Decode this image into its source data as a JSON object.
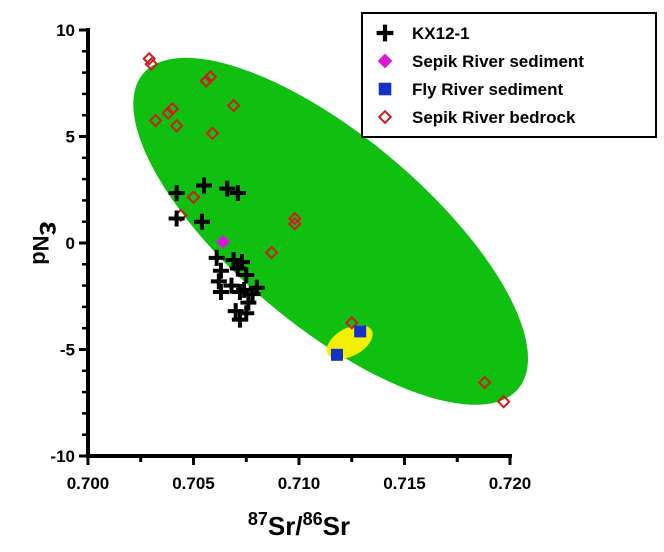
{
  "chart_data": {
    "type": "scatter",
    "title": "",
    "xlabel": {
      "sup1": "87",
      "main1": "Sr/",
      "sup2": "86",
      "main2": "Sr"
    },
    "ylabel": {
      "main": "ε",
      "sub": "Nd"
    },
    "xlim": [
      0.7,
      0.72
    ],
    "ylim": [
      -10,
      10
    ],
    "x_ticks": [
      "0.700",
      "0.705",
      "0.710",
      "0.715",
      "0.720"
    ],
    "y_ticks": [
      "10",
      "5",
      "0",
      "-5",
      "-10"
    ],
    "legend_position": "top-right",
    "grid": false,
    "fields": [
      {
        "label": "green field",
        "color": "#10c010",
        "center": [
          0.7115,
          0.55
        ],
        "extent_x": [
          0.701,
          0.722
        ],
        "orientation": "upper-left to lower-right"
      },
      {
        "label": "yellow field",
        "color": "#f5ef00",
        "center": [
          0.7124,
          -4.65
        ],
        "extent_x": [
          0.7112,
          0.7138
        ]
      }
    ],
    "series": [
      {
        "name": "KX12-1",
        "marker": "cross",
        "color": "#000000",
        "points": [
          [
            0.7042,
            2.35
          ],
          [
            0.7055,
            2.7
          ],
          [
            0.7066,
            2.55
          ],
          [
            0.7071,
            2.35
          ],
          [
            0.7054,
            1.0
          ],
          [
            0.7042,
            1.15
          ],
          [
            0.7061,
            -0.7
          ],
          [
            0.7063,
            -1.3
          ],
          [
            0.7062,
            -1.8
          ],
          [
            0.7063,
            -2.3
          ],
          [
            0.7069,
            -0.8
          ],
          [
            0.7071,
            -1.2
          ],
          [
            0.7073,
            -0.9
          ],
          [
            0.7075,
            -1.5
          ],
          [
            0.7068,
            -2.0
          ],
          [
            0.7072,
            -2.3
          ],
          [
            0.7074,
            -2.2
          ],
          [
            0.7076,
            -2.8
          ],
          [
            0.707,
            -3.2
          ],
          [
            0.7072,
            -3.6
          ],
          [
            0.7075,
            -3.3
          ],
          [
            0.7078,
            -2.4
          ],
          [
            0.708,
            -2.1
          ]
        ]
      },
      {
        "name": "Sepik River sediment",
        "marker": "diamond",
        "color": "#d81ad8",
        "points": [
          [
            0.7064,
            0.05
          ]
        ]
      },
      {
        "name": "Fly River sediment",
        "marker": "square",
        "color": "#1432c8",
        "points": [
          [
            0.7118,
            -5.25
          ],
          [
            0.7129,
            -4.15
          ]
        ]
      },
      {
        "name": "Sepik River bedrock",
        "marker": "open-diamond",
        "color": "#cc1e1e",
        "points": [
          [
            0.7029,
            8.65
          ],
          [
            0.703,
            8.4
          ],
          [
            0.7056,
            7.6
          ],
          [
            0.7058,
            7.8
          ],
          [
            0.7069,
            6.45
          ],
          [
            0.7038,
            6.1
          ],
          [
            0.704,
            6.3
          ],
          [
            0.7032,
            5.75
          ],
          [
            0.7042,
            5.5
          ],
          [
            0.7059,
            5.15
          ],
          [
            0.705,
            2.15
          ],
          [
            0.7044,
            1.3
          ],
          [
            0.7098,
            1.15
          ],
          [
            0.7098,
            0.9
          ],
          [
            0.7087,
            -0.45
          ],
          [
            0.7125,
            -3.75
          ],
          [
            0.7188,
            -6.55
          ],
          [
            0.7197,
            -7.45
          ]
        ]
      }
    ]
  }
}
